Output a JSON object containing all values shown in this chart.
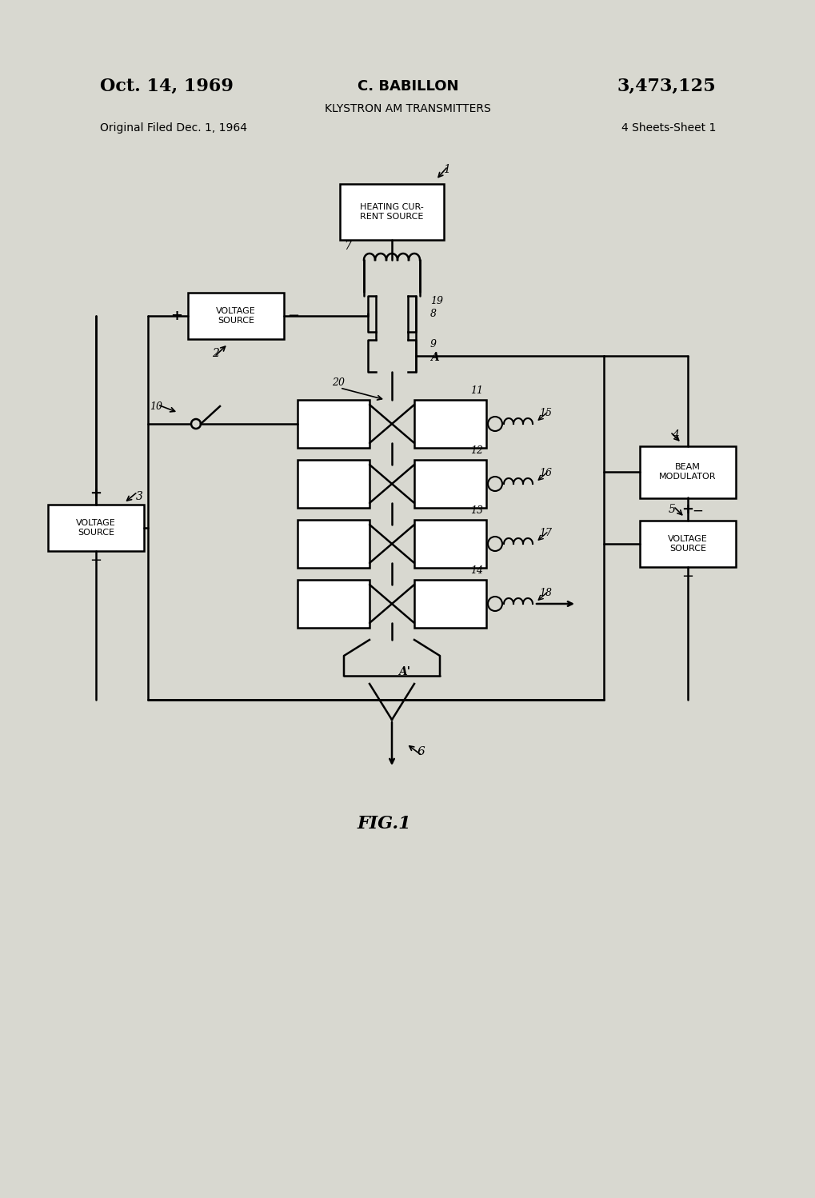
{
  "title_left": "Oct. 14, 1969",
  "title_center": "C. BABILLON",
  "title_right": "3,473,125",
  "subtitle": "KLYSTRON AM TRANSMITTERS",
  "filed_left": "Original Filed Dec. 1, 1964",
  "filed_right": "4 Sheets-Sheet 1",
  "fig_label": "FIG.1",
  "bg_color": "#d8d8d0",
  "paper_color": "#e8e8e0",
  "line_color": "#000000"
}
